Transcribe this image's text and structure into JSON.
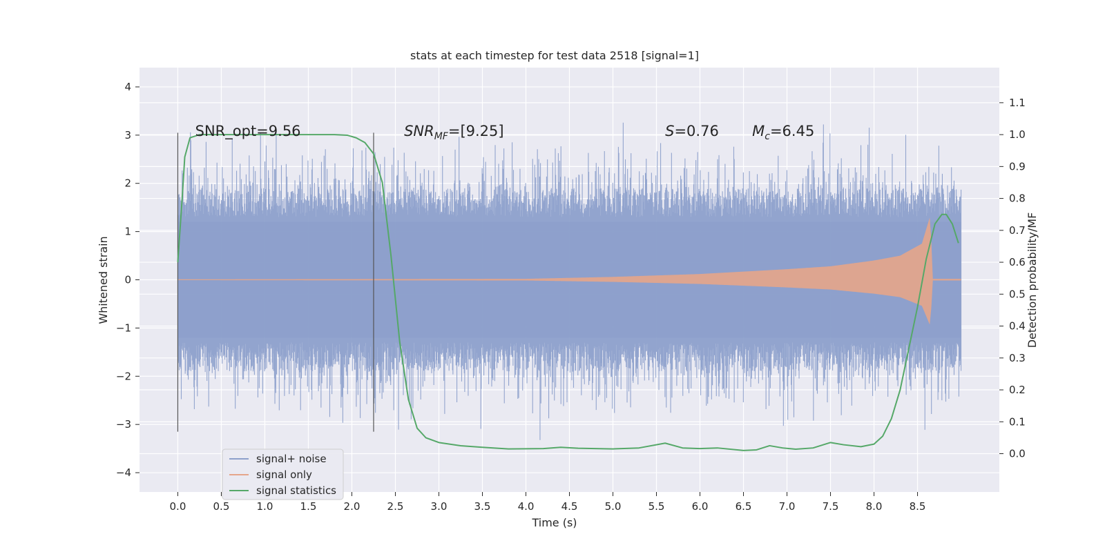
{
  "chart_data": {
    "type": "line",
    "title": "stats at each timestep for test data 2518 [signal=1]",
    "xlabel": "Time (s)",
    "ylabel": "Whitened strain",
    "y2label": "Detection probability/MF",
    "xlim": [
      -0.44,
      9.44
    ],
    "ylim": [
      -4.4,
      4.4
    ],
    "y2lim": [
      -0.12,
      1.21
    ],
    "grid": true,
    "xticks": [
      0.0,
      0.5,
      1.0,
      1.5,
      2.0,
      2.5,
      3.0,
      3.5,
      4.0,
      4.5,
      5.0,
      5.5,
      6.0,
      6.5,
      7.0,
      7.5,
      8.0,
      8.5
    ],
    "xtick_labels": [
      "0.0",
      "0.5",
      "1.0",
      "1.5",
      "2.0",
      "2.5",
      "3.0",
      "3.5",
      "4.0",
      "4.5",
      "5.0",
      "5.5",
      "6.0",
      "6.5",
      "7.0",
      "7.5",
      "8.0",
      "8.5"
    ],
    "yticks": [
      4,
      3,
      2,
      1,
      0,
      -1,
      -2,
      -3,
      -4
    ],
    "ytick_labels": [
      "4",
      "3",
      "2",
      "1",
      "0",
      "−1",
      "−2",
      "−3",
      "−4"
    ],
    "y2ticks": [
      1.1,
      1.0,
      0.9,
      0.8,
      0.7,
      0.6,
      0.5,
      0.4,
      0.3,
      0.2,
      0.1,
      0.0
    ],
    "y2tick_labels": [
      "1.1",
      "1.0",
      "0.9",
      "0.8",
      "0.7",
      "0.6",
      "0.5",
      "0.4",
      "0.3",
      "0.2",
      "0.1",
      "0.0"
    ],
    "legend_position": "lower-left",
    "series": [
      {
        "name": "signal+ noise",
        "color": "#8da0cb",
        "x_range": [
          0.0,
          9.0
        ],
        "typical_range": [
          -1.9,
          1.9
        ],
        "peak_max": 3.9,
        "peak_min": -4.0
      },
      {
        "name": "signal only",
        "color": "#e5a58a",
        "x_range": [
          0.0,
          9.0
        ],
        "envelope": [
          [
            0.0,
            0.01
          ],
          [
            4.0,
            0.02
          ],
          [
            5.0,
            0.06
          ],
          [
            6.0,
            0.12
          ],
          [
            7.0,
            0.22
          ],
          [
            7.5,
            0.28
          ],
          [
            8.0,
            0.4
          ],
          [
            8.3,
            0.5
          ],
          [
            8.55,
            0.75
          ],
          [
            8.65,
            1.35
          ],
          [
            8.67,
            0.02
          ],
          [
            9.0,
            0.02
          ]
        ]
      },
      {
        "name": "signal statistics",
        "color": "#55a868",
        "axis": "right",
        "x": [
          0.0,
          0.05,
          0.08,
          0.14,
          0.25,
          0.5,
          1.0,
          1.5,
          1.8,
          1.95,
          2.05,
          2.15,
          2.25,
          2.35,
          2.45,
          2.55,
          2.65,
          2.75,
          2.85,
          3.0,
          3.25,
          3.5,
          3.8,
          4.2,
          4.4,
          4.6,
          5.0,
          5.3,
          5.6,
          5.8,
          6.0,
          6.2,
          6.5,
          6.65,
          6.8,
          6.95,
          7.1,
          7.3,
          7.5,
          7.65,
          7.85,
          8.0,
          8.1,
          8.2,
          8.3,
          8.4,
          8.5,
          8.6,
          8.7,
          8.78,
          8.83,
          8.9,
          8.97
        ],
        "y": [
          0.6,
          0.8,
          0.93,
          0.99,
          1.0,
          1.0,
          1.0,
          1.0,
          1.0,
          0.998,
          0.99,
          0.975,
          0.94,
          0.85,
          0.62,
          0.35,
          0.17,
          0.08,
          0.05,
          0.035,
          0.025,
          0.02,
          0.015,
          0.016,
          0.02,
          0.017,
          0.015,
          0.018,
          0.033,
          0.018,
          0.016,
          0.018,
          0.01,
          0.012,
          0.025,
          0.018,
          0.014,
          0.018,
          0.035,
          0.028,
          0.022,
          0.03,
          0.055,
          0.11,
          0.2,
          0.33,
          0.46,
          0.61,
          0.72,
          0.75,
          0.75,
          0.72,
          0.66
        ]
      }
    ],
    "vlines": [
      0.0,
      2.25
    ],
    "annotations": [
      {
        "text": "SNR_opt=9.56",
        "x": 0.2,
        "y": 3.0
      },
      {
        "main": "SNR",
        "sub": "MF",
        "after": "=[9.25]",
        "x": 2.6,
        "y": 3.0
      },
      {
        "main": "S",
        "after": "=0.76",
        "x": 5.6,
        "y": 3.0
      },
      {
        "main": "M",
        "sub": "c",
        "after": "=6.45",
        "x": 6.6,
        "y": 3.0
      }
    ]
  }
}
